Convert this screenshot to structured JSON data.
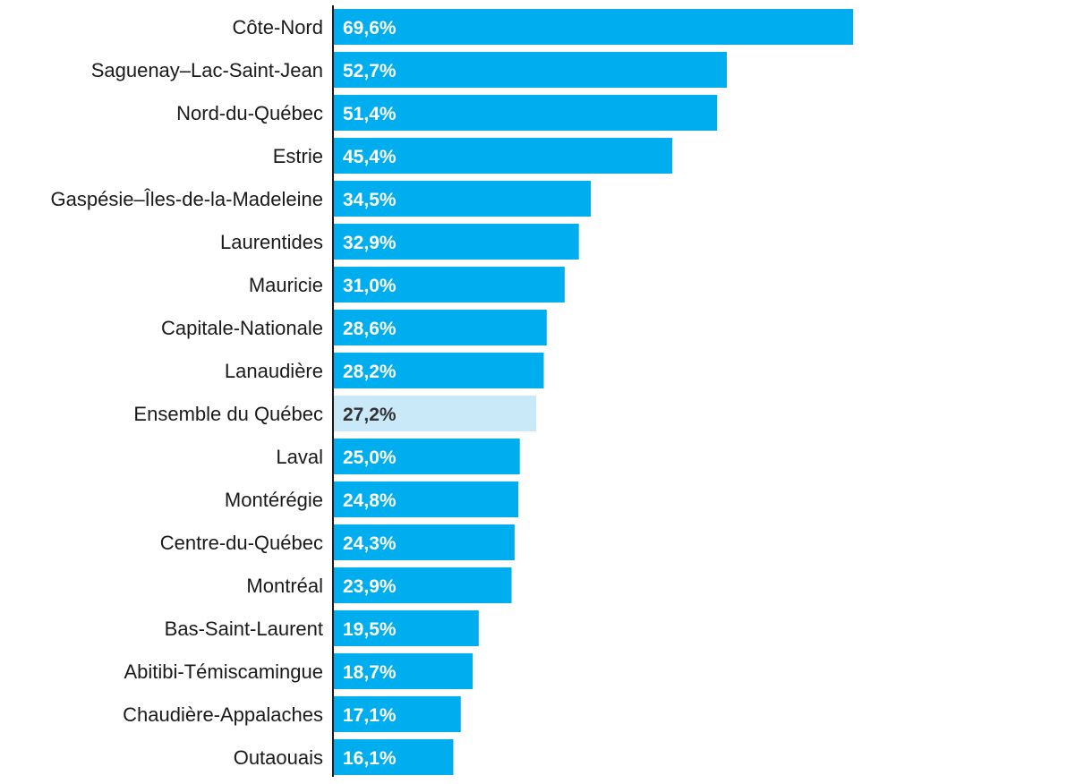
{
  "chart_data": {
    "type": "bar",
    "orientation": "horizontal",
    "title": "",
    "xlabel": "",
    "ylabel": "",
    "xlim": [
      0,
      100
    ],
    "grid": false,
    "legend": "none",
    "categories": [
      "Côte-Nord",
      "Saguenay–Lac-Saint-Jean",
      "Nord-du-Québec",
      "Estrie",
      "Gaspésie–Îles-de-la-Madeleine",
      "Laurentides",
      "Mauricie",
      "Capitale-Nationale",
      "Lanaudière",
      "Ensemble du Québec",
      "Laval",
      "Montérégie",
      "Centre-du-Québec",
      "Montréal",
      "Bas-Saint-Laurent",
      "Abitibi-Témiscamingue",
      "Chaudière-Appalaches",
      "Outaouais"
    ],
    "values": [
      69.6,
      52.7,
      51.4,
      45.4,
      34.5,
      32.9,
      31.0,
      28.6,
      28.2,
      27.2,
      25.0,
      24.8,
      24.3,
      23.9,
      19.5,
      18.7,
      17.1,
      16.1
    ],
    "value_labels": [
      "69,6%",
      "52,7%",
      "51,4%",
      "45,4%",
      "34,5%",
      "32,9%",
      "31,0%",
      "28,6%",
      "28,2%",
      "27,2%",
      "25,0%",
      "24,8%",
      "24,3%",
      "23,9%",
      "19,5%",
      "18,7%",
      "17,1%",
      "16,1%"
    ],
    "highlight_category": "Ensemble du Québec",
    "colors": {
      "bar": "#00aeef",
      "bar_highlight": "#c9e9f9",
      "value_text": "#ffffff",
      "value_text_highlight": "#333333",
      "axis": "#1a1a1a"
    }
  }
}
